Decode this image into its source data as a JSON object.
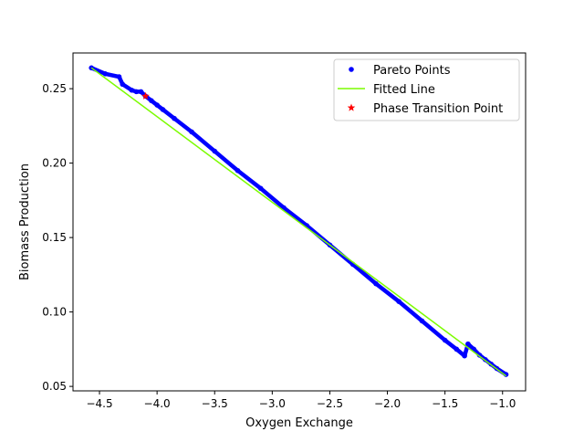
{
  "chart_data": {
    "type": "scatter",
    "xlabel": "Oxygen Exchange",
    "ylabel": "Biomass Production",
    "xlim": [
      -4.73,
      -0.8
    ],
    "ylim": [
      0.047,
      0.274
    ],
    "x_ticks": [
      {
        "value": -4.5,
        "label": "−4.5"
      },
      {
        "value": -4.0,
        "label": "−4.0"
      },
      {
        "value": -3.5,
        "label": "−3.5"
      },
      {
        "value": -3.0,
        "label": "−3.0"
      },
      {
        "value": -2.5,
        "label": "−2.5"
      },
      {
        "value": -2.0,
        "label": "−2.0"
      },
      {
        "value": -1.5,
        "label": "−1.5"
      },
      {
        "value": -1.0,
        "label": "−1.0"
      }
    ],
    "y_ticks": [
      {
        "value": 0.05,
        "label": "0.05"
      },
      {
        "value": 0.1,
        "label": "0.10"
      },
      {
        "value": 0.15,
        "label": "0.15"
      },
      {
        "value": 0.2,
        "label": "0.20"
      },
      {
        "value": 0.25,
        "label": "0.25"
      }
    ],
    "legend_position": "top-right",
    "series": [
      {
        "name": "Pareto Points",
        "kind": "points",
        "color": "#0000ff",
        "x": [
          -4.57,
          -4.45,
          -4.33,
          -4.3,
          -4.22,
          -4.18,
          -4.14,
          -4.1,
          -4.05,
          -4.0,
          -3.95,
          -3.85,
          -3.7,
          -3.5,
          -3.3,
          -3.1,
          -2.9,
          -2.7,
          -2.5,
          -2.3,
          -2.1,
          -1.9,
          -1.7,
          -1.5,
          -1.4,
          -1.33,
          -1.3,
          -1.25,
          -1.2,
          -1.15,
          -1.1,
          -1.05,
          -0.97
        ],
        "y": [
          0.264,
          0.26,
          0.258,
          0.253,
          0.249,
          0.248,
          0.248,
          0.245,
          0.242,
          0.239,
          0.236,
          0.23,
          0.221,
          0.208,
          0.195,
          0.183,
          0.17,
          0.158,
          0.145,
          0.132,
          0.119,
          0.107,
          0.094,
          0.081,
          0.075,
          0.0705,
          0.0785,
          0.075,
          0.071,
          0.068,
          0.065,
          0.062,
          0.058
        ]
      },
      {
        "name": "Fitted Line",
        "kind": "line",
        "color": "#7cfc00",
        "x": [
          -4.57,
          -0.97
        ],
        "y": [
          0.264,
          0.057
        ]
      },
      {
        "name": "Phase Transition Point",
        "kind": "star",
        "color": "#ff0000",
        "x": [
          -4.1
        ],
        "y": [
          0.245
        ]
      }
    ]
  }
}
